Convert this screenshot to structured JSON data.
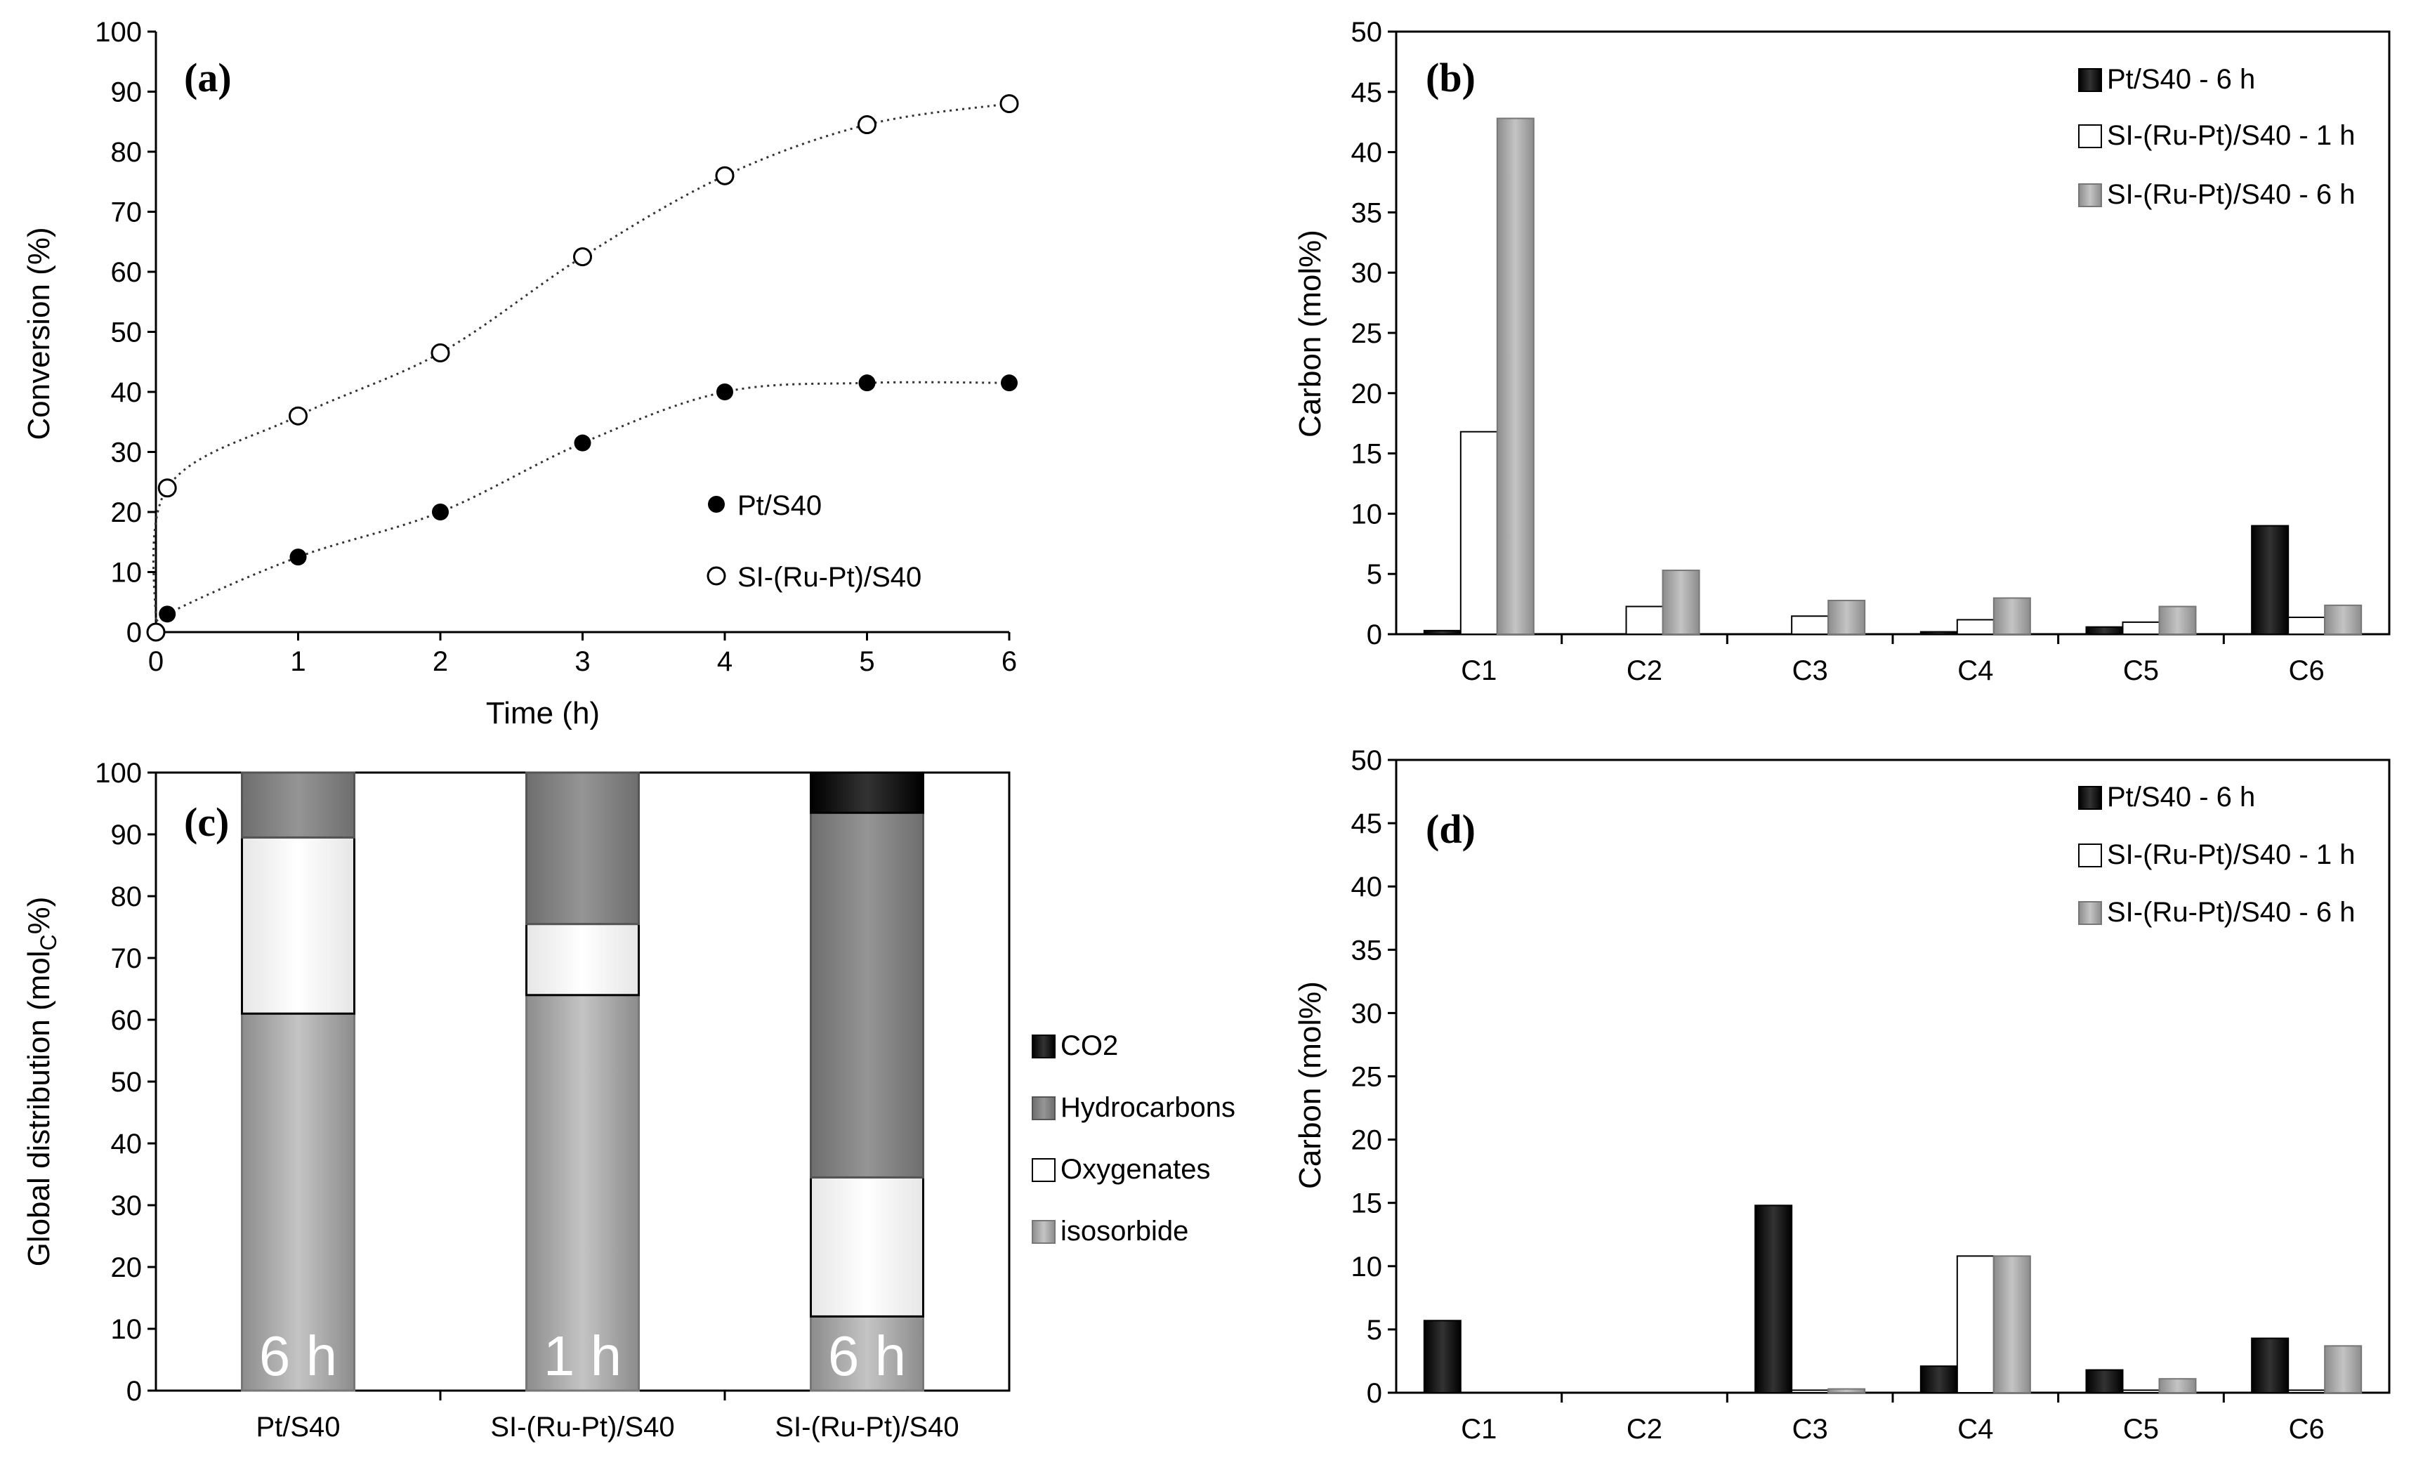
{
  "colors": {
    "black": "#111111",
    "white": "#ffffff",
    "gray": "#a6a6a6",
    "dark_gray": "#808080",
    "light_gray": "#f2f2f2"
  },
  "chart_data": [
    {
      "id": "a",
      "type": "scatter",
      "label": "(a)",
      "xlabel": "Time (h)",
      "ylabel": "Conversion (%)",
      "xlim": [
        0,
        6
      ],
      "ylim": [
        0,
        100
      ],
      "xticks": [
        "0",
        "1",
        "2",
        "3",
        "4",
        "5",
        "6"
      ],
      "yticks": [
        "0",
        "10",
        "20",
        "30",
        "40",
        "50",
        "60",
        "70",
        "80",
        "90",
        "100"
      ],
      "series": [
        {
          "name": "Pt/S40",
          "marker": "filled",
          "x": [
            0,
            0.08,
            1,
            2,
            3,
            4,
            5,
            6
          ],
          "y": [
            0,
            3,
            12.5,
            20,
            31.5,
            40,
            41.5,
            41.5
          ]
        },
        {
          "name": "SI-(Ru-Pt)/S40",
          "marker": "open",
          "x": [
            0,
            0.08,
            1,
            2,
            3,
            4,
            5,
            6
          ],
          "y": [
            0,
            24,
            36,
            46.5,
            62.5,
            76,
            84.5,
            88
          ]
        }
      ]
    },
    {
      "id": "b",
      "type": "bar",
      "label": "(b)",
      "xlabel": "",
      "ylabel": "Carbon (mol%)",
      "ylim": [
        0,
        50
      ],
      "yticks": [
        "0",
        "5",
        "10",
        "15",
        "20",
        "25",
        "30",
        "35",
        "40",
        "45",
        "50"
      ],
      "categories": [
        "C1",
        "C2",
        "C3",
        "C4",
        "C5",
        "C6"
      ],
      "series": [
        {
          "name": "Pt/S40 - 6 h",
          "values": [
            0.3,
            0,
            0,
            0.2,
            0.6,
            9
          ]
        },
        {
          "name": "SI-(Ru-Pt)/S40 - 1 h",
          "values": [
            16.8,
            2.3,
            1.5,
            1.2,
            1,
            1.4
          ]
        },
        {
          "name": "SI-(Ru-Pt)/S40 - 6 h",
          "values": [
            42.8,
            5.3,
            2.8,
            3,
            2.3,
            2.4
          ]
        }
      ]
    },
    {
      "id": "c",
      "type": "bar",
      "stacked": true,
      "label": "(c)",
      "xlabel": "",
      "ylabel_main": "Global distribution (mol",
      "ylabel_sub": "C",
      "ylabel_end": "%)",
      "ylim": [
        0,
        100
      ],
      "yticks": [
        "0",
        "10",
        "20",
        "30",
        "40",
        "50",
        "60",
        "70",
        "80",
        "90",
        "100"
      ],
      "categories": [
        "Pt/S40",
        "SI-(Ru-Pt)/S40",
        "SI-(Ru-Pt)/S40"
      ],
      "bar_labels": [
        "6 h",
        "1 h",
        "6 h"
      ],
      "series": [
        {
          "name": "isosorbide",
          "values": [
            61,
            64,
            12
          ]
        },
        {
          "name": "Oxygenates",
          "values": [
            28.5,
            11.5,
            22.5
          ]
        },
        {
          "name": "Hydrocarbons",
          "values": [
            10.5,
            24.5,
            59
          ]
        },
        {
          "name": "CO2",
          "values": [
            0,
            0,
            6.5
          ]
        }
      ],
      "legend_order": [
        "CO2",
        "Hydrocarbons",
        "Oxygenates",
        "isosorbide"
      ]
    },
    {
      "id": "d",
      "type": "bar",
      "label": "(d)",
      "xlabel": "",
      "ylabel": "Carbon (mol%)",
      "ylim": [
        0,
        50
      ],
      "yticks": [
        "0",
        "5",
        "10",
        "15",
        "20",
        "25",
        "30",
        "35",
        "40",
        "45",
        "50"
      ],
      "categories": [
        "C1",
        "C2",
        "C3",
        "C4",
        "C5",
        "C6"
      ],
      "series": [
        {
          "name": "Pt/S40 - 6 h",
          "values": [
            5.7,
            0,
            14.8,
            2.1,
            1.8,
            4.3
          ]
        },
        {
          "name": "SI-(Ru-Pt)/S40 - 1 h",
          "values": [
            0,
            0,
            0.2,
            10.8,
            0.2,
            0.2
          ]
        },
        {
          "name": "SI-(Ru-Pt)/S40 - 6 h",
          "values": [
            0,
            0,
            0.3,
            10.8,
            1.1,
            3.7
          ]
        }
      ]
    }
  ]
}
